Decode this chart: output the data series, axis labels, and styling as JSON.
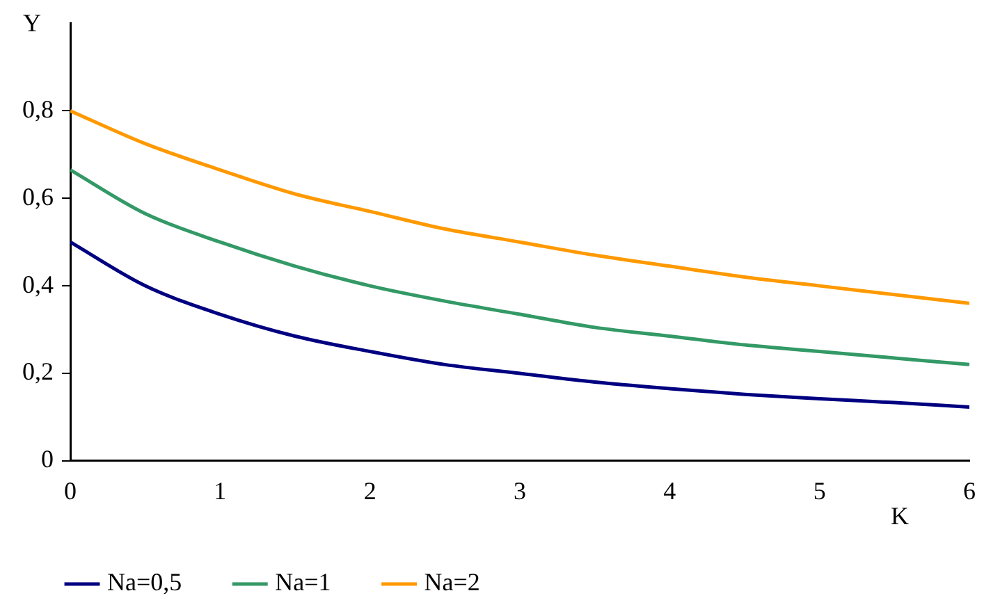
{
  "chart_data": {
    "type": "line",
    "xlabel": "K",
    "ylabel": "Y",
    "x": [
      0,
      0.5,
      1,
      1.5,
      2,
      2.5,
      3,
      3.5,
      4,
      4.5,
      5,
      5.5,
      6
    ],
    "series": [
      {
        "name": "Na=0,5",
        "color": "#000080",
        "values": [
          0.5,
          0.4,
          0.335,
          0.285,
          0.25,
          0.22,
          0.2,
          0.18,
          0.165,
          0.152,
          0.142,
          0.133,
          0.123
        ]
      },
      {
        "name": "Na=1",
        "color": "#339966",
        "values": [
          0.665,
          0.565,
          0.5,
          0.445,
          0.4,
          0.365,
          0.335,
          0.305,
          0.285,
          0.265,
          0.25,
          0.235,
          0.22
        ]
      },
      {
        "name": "Na=2",
        "color": "#ff9900",
        "values": [
          0.8,
          0.725,
          0.665,
          0.61,
          0.57,
          0.53,
          0.5,
          0.47,
          0.445,
          0.42,
          0.4,
          0.38,
          0.36
        ]
      }
    ],
    "xlim": [
      0,
      6
    ],
    "ylim": [
      0,
      1
    ],
    "xticks": [
      0,
      1,
      2,
      3,
      4,
      5,
      6
    ],
    "yticks": [
      0,
      {
        "value": 0.2,
        "label": "0,2"
      },
      {
        "value": 0.4,
        "label": "0,4"
      },
      {
        "value": 0.6,
        "label": "0,6"
      },
      {
        "value": 0.8,
        "label": "0,8"
      }
    ],
    "legend": "bottom",
    "marker": "none",
    "line_style": "solid"
  }
}
